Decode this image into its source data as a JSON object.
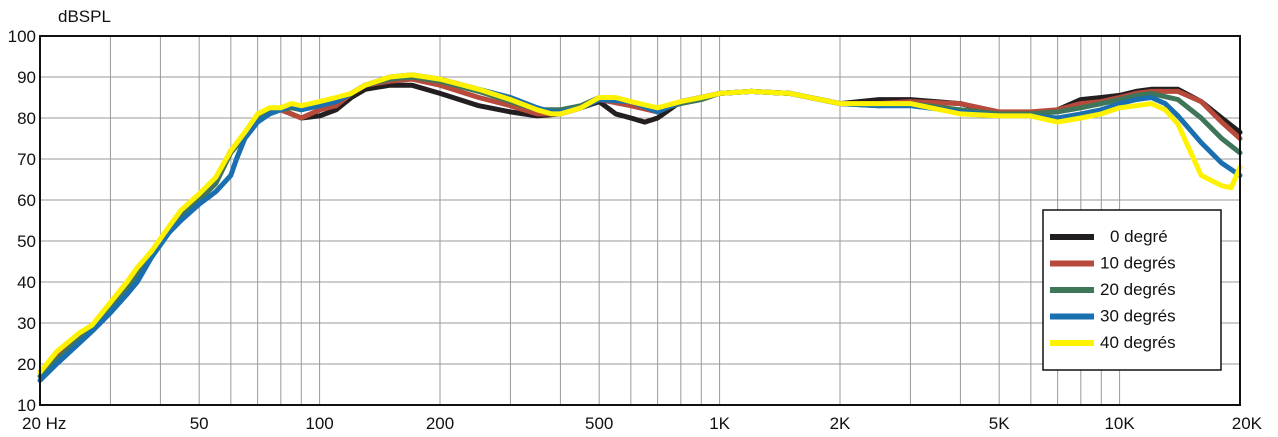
{
  "chart_data": {
    "type": "line",
    "ylabel": "dBSPL",
    "x_scale": "log",
    "xlim": [
      20,
      20000
    ],
    "ylim": [
      10,
      100
    ],
    "y_ticks": [
      "100",
      "90",
      "80",
      "70",
      "60",
      "50",
      "40",
      "30",
      "20",
      "10"
    ],
    "y_tick_values": [
      100,
      90,
      80,
      70,
      60,
      50,
      40,
      30,
      20,
      10
    ],
    "x_ticks": [
      {
        "label": "20  Hz",
        "value": 20
      },
      {
        "label": "50",
        "value": 50
      },
      {
        "label": "100",
        "value": 100
      },
      {
        "label": "200",
        "value": 200
      },
      {
        "label": "500",
        "value": 500
      },
      {
        "label": "1K",
        "value": 1000
      },
      {
        "label": "2K",
        "value": 2000
      },
      {
        "label": "5K",
        "value": 5000
      },
      {
        "label": "10K",
        "value": 10000
      },
      {
        "label": "20K",
        "value": 20000
      }
    ],
    "grid": true,
    "legend_position": "bottom-right",
    "series": [
      {
        "name": "0 degré",
        "color": "#231f20",
        "points": [
          [
            20,
            18
          ],
          [
            22,
            22
          ],
          [
            25,
            27
          ],
          [
            27,
            29
          ],
          [
            30,
            34
          ],
          [
            33,
            39
          ],
          [
            35,
            43
          ],
          [
            38,
            47
          ],
          [
            42,
            53
          ],
          [
            45,
            57
          ],
          [
            50,
            61
          ],
          [
            55,
            65
          ],
          [
            60,
            72
          ],
          [
            65,
            76
          ],
          [
            70,
            80
          ],
          [
            75,
            82
          ],
          [
            80,
            82
          ],
          [
            85,
            81
          ],
          [
            90,
            80
          ],
          [
            100,
            80.5
          ],
          [
            110,
            82
          ],
          [
            120,
            85
          ],
          [
            130,
            87
          ],
          [
            150,
            88
          ],
          [
            170,
            88
          ],
          [
            200,
            86
          ],
          [
            250,
            83
          ],
          [
            300,
            81.5
          ],
          [
            350,
            80.5
          ],
          [
            400,
            81
          ],
          [
            450,
            82.5
          ],
          [
            500,
            84
          ],
          [
            550,
            81
          ],
          [
            600,
            80
          ],
          [
            650,
            79
          ],
          [
            700,
            80
          ],
          [
            800,
            84
          ],
          [
            900,
            85
          ],
          [
            1000,
            86
          ],
          [
            1200,
            86.5
          ],
          [
            1500,
            86
          ],
          [
            2000,
            83.5
          ],
          [
            2500,
            84.5
          ],
          [
            3000,
            84.5
          ],
          [
            4000,
            83.5
          ],
          [
            5000,
            81
          ],
          [
            6000,
            80.5
          ],
          [
            7000,
            82
          ],
          [
            8000,
            84.5
          ],
          [
            9000,
            85
          ],
          [
            10000,
            85.5
          ],
          [
            11000,
            86.5
          ],
          [
            12000,
            87
          ],
          [
            14000,
            87
          ],
          [
            16000,
            84
          ],
          [
            18000,
            80
          ],
          [
            20000,
            76.5
          ]
        ]
      },
      {
        "name": "10 degrés",
        "color": "#b84a3c",
        "points": [
          [
            20,
            18
          ],
          [
            22,
            22
          ],
          [
            25,
            27
          ],
          [
            27,
            29
          ],
          [
            30,
            34
          ],
          [
            33,
            39
          ],
          [
            35,
            43
          ],
          [
            38,
            47
          ],
          [
            42,
            53
          ],
          [
            45,
            57
          ],
          [
            50,
            61
          ],
          [
            55,
            65
          ],
          [
            60,
            72
          ],
          [
            65,
            76
          ],
          [
            70,
            80
          ],
          [
            75,
            82
          ],
          [
            80,
            82
          ],
          [
            85,
            81
          ],
          [
            90,
            80
          ],
          [
            100,
            82
          ],
          [
            110,
            83
          ],
          [
            120,
            86
          ],
          [
            130,
            88
          ],
          [
            150,
            89
          ],
          [
            170,
            89.5
          ],
          [
            200,
            88
          ],
          [
            250,
            85
          ],
          [
            300,
            83
          ],
          [
            350,
            81
          ],
          [
            400,
            81
          ],
          [
            450,
            82.5
          ],
          [
            500,
            84.5
          ],
          [
            600,
            83
          ],
          [
            700,
            81.5
          ],
          [
            800,
            84
          ],
          [
            900,
            85
          ],
          [
            1000,
            86
          ],
          [
            1200,
            86.5
          ],
          [
            1500,
            86
          ],
          [
            2000,
            83.5
          ],
          [
            2500,
            83.5
          ],
          [
            3000,
            84
          ],
          [
            4000,
            83.5
          ],
          [
            5000,
            81.5
          ],
          [
            6000,
            81.5
          ],
          [
            7000,
            82
          ],
          [
            8000,
            83.5
          ],
          [
            9000,
            84
          ],
          [
            10000,
            85
          ],
          [
            11000,
            86
          ],
          [
            12000,
            86.5
          ],
          [
            14000,
            86.5
          ],
          [
            16000,
            84
          ],
          [
            18000,
            79
          ],
          [
            20000,
            75
          ]
        ]
      },
      {
        "name": "20 degrés",
        "color": "#3f7659",
        "points": [
          [
            20,
            17
          ],
          [
            22,
            21
          ],
          [
            25,
            26
          ],
          [
            27,
            28.5
          ],
          [
            30,
            33.5
          ],
          [
            33,
            38
          ],
          [
            35,
            41.5
          ],
          [
            38,
            46.5
          ],
          [
            42,
            52.5
          ],
          [
            45,
            56
          ],
          [
            50,
            60
          ],
          [
            55,
            64
          ],
          [
            60,
            71.5
          ],
          [
            65,
            75.5
          ],
          [
            70,
            80
          ],
          [
            75,
            82
          ],
          [
            80,
            82
          ],
          [
            85,
            82.5
          ],
          [
            90,
            82
          ],
          [
            100,
            83.5
          ],
          [
            110,
            84
          ],
          [
            120,
            86
          ],
          [
            130,
            88
          ],
          [
            150,
            89.5
          ],
          [
            170,
            90
          ],
          [
            200,
            89
          ],
          [
            250,
            86.5
          ],
          [
            300,
            84
          ],
          [
            350,
            82
          ],
          [
            400,
            82
          ],
          [
            450,
            83
          ],
          [
            500,
            85
          ],
          [
            600,
            84
          ],
          [
            700,
            82
          ],
          [
            800,
            83.5
          ],
          [
            900,
            84.5
          ],
          [
            1000,
            86
          ],
          [
            1200,
            86.5
          ],
          [
            1500,
            86
          ],
          [
            2000,
            83.5
          ],
          [
            2500,
            83
          ],
          [
            3000,
            83.5
          ],
          [
            4000,
            82
          ],
          [
            5000,
            81
          ],
          [
            6000,
            81
          ],
          [
            7000,
            81.5
          ],
          [
            8000,
            82.5
          ],
          [
            9000,
            83.5
          ],
          [
            10000,
            84.5
          ],
          [
            11000,
            85.5
          ],
          [
            12000,
            86
          ],
          [
            14000,
            84.5
          ],
          [
            16000,
            80
          ],
          [
            18000,
            75
          ],
          [
            20000,
            71.5
          ]
        ]
      },
      {
        "name": "30 degrés",
        "color": "#1a6fb1",
        "points": [
          [
            20,
            16
          ],
          [
            22,
            20
          ],
          [
            25,
            25
          ],
          [
            27,
            28
          ],
          [
            30,
            32.5
          ],
          [
            33,
            37
          ],
          [
            35,
            40
          ],
          [
            38,
            46
          ],
          [
            42,
            52
          ],
          [
            45,
            55
          ],
          [
            50,
            59
          ],
          [
            55,
            62
          ],
          [
            60,
            66
          ],
          [
            62,
            70
          ],
          [
            65,
            75
          ],
          [
            70,
            79
          ],
          [
            75,
            81
          ],
          [
            80,
            82
          ],
          [
            85,
            83
          ],
          [
            90,
            82
          ],
          [
            100,
            83
          ],
          [
            110,
            84
          ],
          [
            120,
            86
          ],
          [
            130,
            88
          ],
          [
            150,
            90
          ],
          [
            170,
            90.5
          ],
          [
            200,
            89.5
          ],
          [
            250,
            87
          ],
          [
            300,
            85
          ],
          [
            350,
            82.5
          ],
          [
            380,
            81.5
          ],
          [
            400,
            81.5
          ],
          [
            450,
            82.5
          ],
          [
            500,
            84.5
          ],
          [
            600,
            84
          ],
          [
            700,
            81.5
          ],
          [
            800,
            84
          ],
          [
            900,
            85
          ],
          [
            1000,
            86
          ],
          [
            1200,
            86.5
          ],
          [
            1500,
            86
          ],
          [
            2000,
            83.5
          ],
          [
            2500,
            83
          ],
          [
            3000,
            83
          ],
          [
            4000,
            81.5
          ],
          [
            5000,
            80.5
          ],
          [
            6000,
            80.5
          ],
          [
            7000,
            80
          ],
          [
            8000,
            81
          ],
          [
            9000,
            82
          ],
          [
            10000,
            83.5
          ],
          [
            11000,
            84.5
          ],
          [
            12000,
            85
          ],
          [
            13000,
            83.5
          ],
          [
            14000,
            80.5
          ],
          [
            16000,
            74
          ],
          [
            18000,
            69
          ],
          [
            20000,
            66
          ]
        ]
      },
      {
        "name": "40 degrés",
        "color": "#fff200",
        "points": [
          [
            20,
            18
          ],
          [
            22,
            23
          ],
          [
            25,
            27.5
          ],
          [
            27,
            29.5
          ],
          [
            30,
            35
          ],
          [
            33,
            40
          ],
          [
            35,
            43.5
          ],
          [
            38,
            47.5
          ],
          [
            42,
            53.5
          ],
          [
            45,
            57.5
          ],
          [
            50,
            61.5
          ],
          [
            55,
            65.5
          ],
          [
            60,
            72
          ],
          [
            65,
            76.5
          ],
          [
            70,
            81
          ],
          [
            75,
            82.5
          ],
          [
            80,
            82.5
          ],
          [
            85,
            83.5
          ],
          [
            90,
            83
          ],
          [
            100,
            84
          ],
          [
            110,
            85
          ],
          [
            120,
            86
          ],
          [
            130,
            88
          ],
          [
            150,
            90
          ],
          [
            170,
            90.5
          ],
          [
            200,
            89.5
          ],
          [
            250,
            87
          ],
          [
            300,
            84.5
          ],
          [
            350,
            82
          ],
          [
            380,
            81
          ],
          [
            400,
            81
          ],
          [
            450,
            82.5
          ],
          [
            500,
            85
          ],
          [
            550,
            85
          ],
          [
            600,
            84
          ],
          [
            700,
            82.5
          ],
          [
            800,
            84
          ],
          [
            900,
            85
          ],
          [
            1000,
            86
          ],
          [
            1200,
            86.5
          ],
          [
            1500,
            86
          ],
          [
            2000,
            83.5
          ],
          [
            2500,
            83.5
          ],
          [
            3000,
            83.5
          ],
          [
            4000,
            81
          ],
          [
            5000,
            80.5
          ],
          [
            6000,
            80.5
          ],
          [
            7000,
            79
          ],
          [
            8000,
            80
          ],
          [
            9000,
            81
          ],
          [
            10000,
            82.5
          ],
          [
            11000,
            83
          ],
          [
            12000,
            83.5
          ],
          [
            13000,
            82
          ],
          [
            14000,
            78.5
          ],
          [
            15000,
            72
          ],
          [
            16000,
            66
          ],
          [
            18000,
            63.5
          ],
          [
            19000,
            63
          ],
          [
            20000,
            68
          ]
        ]
      }
    ]
  }
}
